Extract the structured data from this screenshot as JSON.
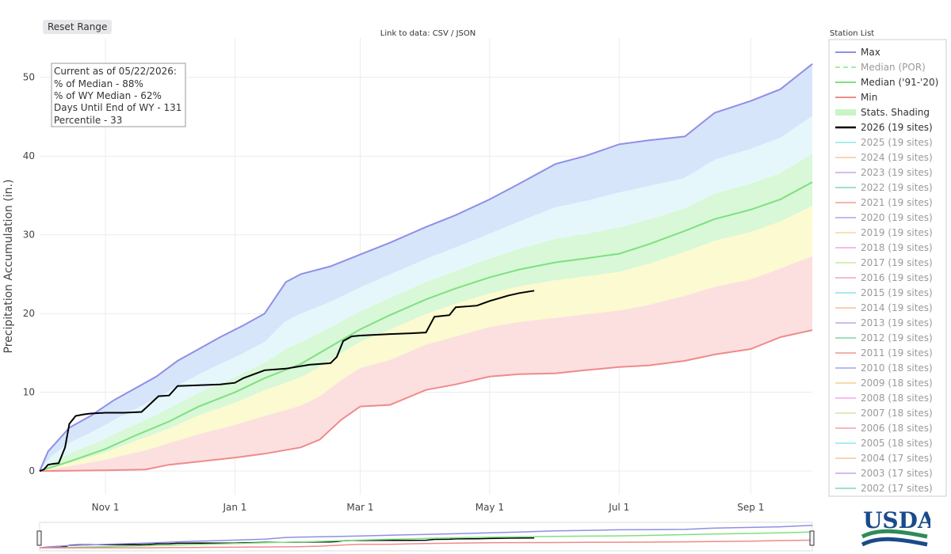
{
  "toolbar": {
    "reset_label": "Reset Range"
  },
  "header": {
    "data_link": "Link to data: CSV / JSON"
  },
  "legend": {
    "title": "Station List",
    "items": [
      {
        "label": "Max",
        "color": "#8f8fe6",
        "style": "line"
      },
      {
        "label": "Median (POR)",
        "color": "#a3eea3",
        "style": "dash"
      },
      {
        "label": "Median ('91-'20)",
        "color": "#7fe07f",
        "style": "line"
      },
      {
        "label": "Min",
        "color": "#f08a8a",
        "style": "line"
      },
      {
        "label": "Stats. Shading",
        "color": "#c8f5c8",
        "style": "fill"
      },
      {
        "label": "2026 (19 sites)",
        "color": "#000000",
        "style": "bold"
      },
      {
        "label": "2025 (19 sites)",
        "color": "#8fe6e6",
        "style": "faded"
      },
      {
        "label": "2024 (19 sites)",
        "color": "#f5c99a",
        "style": "faded"
      },
      {
        "label": "2023 (19 sites)",
        "color": "#c7a5e8",
        "style": "faded"
      },
      {
        "label": "2022 (19 sites)",
        "color": "#7fd6b5",
        "style": "faded"
      },
      {
        "label": "2021 (19 sites)",
        "color": "#f0a08a",
        "style": "faded"
      },
      {
        "label": "2020 (19 sites)",
        "color": "#a5a5ee",
        "style": "faded"
      },
      {
        "label": "2019 (19 sites)",
        "color": "#f5d9a0",
        "style": "faded"
      },
      {
        "label": "2018 (19 sites)",
        "color": "#f5a5e0",
        "style": "faded"
      },
      {
        "label": "2017 (19 sites)",
        "color": "#c9e8a5",
        "style": "faded"
      },
      {
        "label": "2016 (19 sites)",
        "color": "#f5a5b0",
        "style": "faded"
      },
      {
        "label": "2015 (19 sites)",
        "color": "#8fe0e6",
        "style": "faded"
      },
      {
        "label": "2014 (19 sites)",
        "color": "#f5c09a",
        "style": "faded"
      },
      {
        "label": "2013 (19 sites)",
        "color": "#c0a5e8",
        "style": "faded"
      },
      {
        "label": "2012 (19 sites)",
        "color": "#7fd6a5",
        "style": "faded"
      },
      {
        "label": "2011 (19 sites)",
        "color": "#f0988a",
        "style": "faded"
      },
      {
        "label": "2010 (18 sites)",
        "color": "#a0a5ee",
        "style": "faded"
      },
      {
        "label": "2009 (18 sites)",
        "color": "#f5d090",
        "style": "faded"
      },
      {
        "label": "2008 (18 sites)",
        "color": "#f5a5e8",
        "style": "faded"
      },
      {
        "label": "2007 (18 sites)",
        "color": "#d0e8a5",
        "style": "faded"
      },
      {
        "label": "2006 (18 sites)",
        "color": "#f5a0a8",
        "style": "faded"
      },
      {
        "label": "2005 (18 sites)",
        "color": "#8fe6ee",
        "style": "faded"
      },
      {
        "label": "2004 (17 sites)",
        "color": "#f5c8a0",
        "style": "faded"
      },
      {
        "label": "2003 (17 sites)",
        "color": "#c8a5e8",
        "style": "faded"
      },
      {
        "label": "2002 (17 sites)",
        "color": "#7fdab0",
        "style": "faded"
      }
    ]
  },
  "info_box": {
    "lines": [
      "Current as of 05/22/2026:",
      "% of Median - 88%",
      "% of WY Median - 62%",
      "Days Until End of WY - 131",
      "Percentile - 33"
    ]
  },
  "logo": {
    "text": "USDA",
    "color": "#1a4a8a",
    "accent": "#2e8b57"
  },
  "chart_data": {
    "type": "line",
    "ylabel": "Precipitation Accumulation (in.)",
    "xlim": [
      "2025-10-01",
      "2026-09-30"
    ],
    "ylim": [
      -3,
      55
    ],
    "yticks": [
      0,
      10,
      20,
      30,
      40,
      50
    ],
    "xticks": [
      {
        "date": "2025-11-01",
        "label": "Nov 1"
      },
      {
        "date": "2026-01-01",
        "label": "Jan 1"
      },
      {
        "date": "2026-03-01",
        "label": "Mar 1"
      },
      {
        "date": "2026-05-01",
        "label": "May 1"
      },
      {
        "date": "2026-07-01",
        "label": "Jul 1"
      },
      {
        "date": "2026-09-01",
        "label": "Sep 1"
      }
    ],
    "grid": true,
    "legend_position": "right",
    "colors": {
      "max": "#8f8fe6",
      "median": "#7fe07f",
      "min": "#f08a8a",
      "current": "#000000",
      "band_max": "#d6e5fa",
      "band_high": "#e6f7fc",
      "band_mid": "#d8f8d8",
      "band_low": "#fcfad0",
      "band_min": "#fce0e0"
    },
    "series": [
      {
        "name": "Max",
        "dates": [
          "2025-10-01",
          "2025-10-05",
          "2025-10-10",
          "2025-10-15",
          "2025-10-25",
          "2025-11-05",
          "2025-11-15",
          "2025-11-25",
          "2025-12-05",
          "2025-12-15",
          "2025-12-25",
          "2026-01-05",
          "2026-01-15",
          "2026-01-25",
          "2026-02-01",
          "2026-02-15",
          "2026-03-01",
          "2026-03-15",
          "2026-04-01",
          "2026-04-15",
          "2026-05-01",
          "2026-05-15",
          "2026-06-01",
          "2026-06-15",
          "2026-07-01",
          "2026-07-15",
          "2026-08-01",
          "2026-08-15",
          "2026-09-01",
          "2026-09-15",
          "2026-09-30"
        ],
        "values": [
          0,
          2.5,
          4,
          5.5,
          7,
          9,
          10.5,
          12,
          14,
          15.5,
          17,
          18.5,
          20,
          24,
          25,
          26,
          27.5,
          29,
          31,
          32.5,
          34.5,
          36.5,
          39,
          40,
          41.5,
          42,
          42.5,
          45.5,
          47,
          48.5,
          51.7
        ]
      },
      {
        "name": "Median ('91-'20)",
        "dates": [
          "2025-10-01",
          "2025-10-15",
          "2025-11-01",
          "2025-11-15",
          "2025-12-01",
          "2025-12-15",
          "2026-01-01",
          "2026-01-15",
          "2026-02-01",
          "2026-02-15",
          "2026-03-01",
          "2026-03-15",
          "2026-04-01",
          "2026-04-15",
          "2026-05-01",
          "2026-05-15",
          "2026-06-01",
          "2026-06-15",
          "2026-07-01",
          "2026-07-15",
          "2026-08-01",
          "2026-08-15",
          "2026-09-01",
          "2026-09-15",
          "2026-09-30"
        ],
        "values": [
          0,
          1.2,
          2.8,
          4.5,
          6.3,
          8.2,
          10,
          11.8,
          13.6,
          15.8,
          18,
          19.8,
          21.8,
          23.2,
          24.6,
          25.6,
          26.5,
          27,
          27.6,
          28.8,
          30.5,
          32,
          33.2,
          34.5,
          36.7
        ]
      },
      {
        "name": "Min",
        "dates": [
          "2025-10-01",
          "2025-11-01",
          "2025-11-20",
          "2025-12-01",
          "2025-12-15",
          "2026-01-01",
          "2026-01-15",
          "2026-02-01",
          "2026-02-10",
          "2026-02-20",
          "2026-03-01",
          "2026-03-15",
          "2026-04-01",
          "2026-04-15",
          "2026-05-01",
          "2026-05-15",
          "2026-06-01",
          "2026-06-15",
          "2026-07-01",
          "2026-07-15",
          "2026-08-01",
          "2026-08-15",
          "2026-09-01",
          "2026-09-15",
          "2026-09-30"
        ],
        "values": [
          0,
          0.1,
          0.2,
          0.8,
          1.2,
          1.7,
          2.2,
          3,
          4,
          6.5,
          8.2,
          8.4,
          10.3,
          11,
          12,
          12.3,
          12.4,
          12.8,
          13.2,
          13.4,
          14,
          14.8,
          15.5,
          17,
          17.9
        ]
      },
      {
        "name": "2026 (19 sites)",
        "dates": [
          "2025-10-01",
          "2025-10-03",
          "2025-10-05",
          "2025-10-07",
          "2025-10-10",
          "2025-10-13",
          "2025-10-15",
          "2025-10-18",
          "2025-10-20",
          "2025-10-22",
          "2025-10-25",
          "2025-11-01",
          "2025-11-10",
          "2025-11-18",
          "2025-11-22",
          "2025-11-26",
          "2025-12-01",
          "2025-12-05",
          "2025-12-15",
          "2025-12-25",
          "2026-01-01",
          "2026-01-05",
          "2026-01-10",
          "2026-01-15",
          "2026-01-25",
          "2026-02-05",
          "2026-02-15",
          "2026-02-18",
          "2026-02-21",
          "2026-02-25",
          "2026-03-01",
          "2026-03-15",
          "2026-03-25",
          "2026-04-01",
          "2026-04-05",
          "2026-04-12",
          "2026-04-15",
          "2026-04-25",
          "2026-05-01",
          "2026-05-10",
          "2026-05-15",
          "2026-05-22"
        ],
        "values": [
          0,
          0.2,
          0.8,
          0.9,
          1,
          3,
          6,
          7,
          7.1,
          7.2,
          7.3,
          7.4,
          7.4,
          7.5,
          8.5,
          9.5,
          9.6,
          10.8,
          10.9,
          11,
          11.2,
          11.8,
          12.3,
          12.8,
          13,
          13.5,
          13.7,
          14.5,
          16.5,
          17.1,
          17.2,
          17.4,
          17.5,
          17.6,
          19.6,
          19.8,
          20.8,
          21,
          21.6,
          22.3,
          22.6,
          22.9
        ]
      }
    ]
  }
}
